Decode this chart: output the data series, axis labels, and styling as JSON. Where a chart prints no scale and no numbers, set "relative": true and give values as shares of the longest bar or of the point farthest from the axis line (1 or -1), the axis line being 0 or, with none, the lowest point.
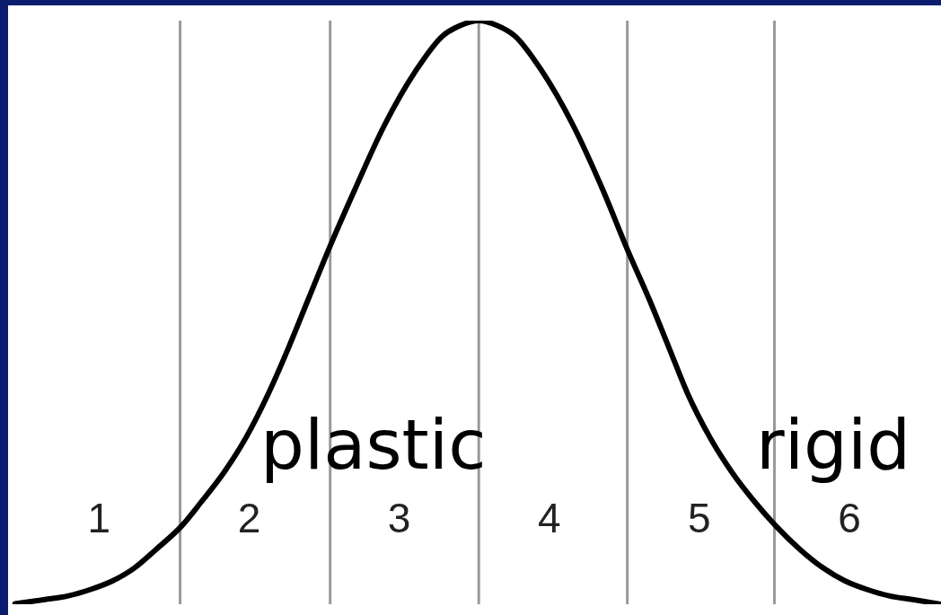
{
  "chart_data": {
    "type": "line",
    "relative": true,
    "color": "#000000",
    "x": [
      0.44,
      0.64,
      0.79,
      0.94,
      1.09,
      1.24,
      1.38,
      1.55,
      1.68,
      1.83,
      1.98,
      2.13,
      2.26,
      2.39,
      2.53,
      2.7,
      2.9,
      3.11,
      3.29,
      3.41,
      3.53,
      3.65,
      3.77,
      3.95,
      4.16,
      4.36,
      4.52,
      4.67,
      4.8,
      4.92,
      5.07,
      5.22,
      5.37,
      5.51,
      5.67,
      5.82,
      5.97,
      6.12,
      6.27,
      6.42,
      6.61
    ],
    "values": [
      0.001,
      0.008,
      0.014,
      0.025,
      0.04,
      0.063,
      0.094,
      0.134,
      0.175,
      0.225,
      0.286,
      0.362,
      0.438,
      0.52,
      0.608,
      0.708,
      0.82,
      0.914,
      0.974,
      0.992,
      1,
      0.992,
      0.974,
      0.914,
      0.82,
      0.708,
      0.608,
      0.52,
      0.438,
      0.362,
      0.286,
      0.225,
      0.175,
      0.134,
      0.094,
      0.063,
      0.04,
      0.025,
      0.014,
      0.008,
      0
    ],
    "xlim": [
      0.34,
      6.61
    ],
    "xticks": [
      1,
      2,
      3,
      4,
      5,
      6
    ],
    "ref_lines": [
      {
        "axis": "x",
        "value": 1.54,
        "color": "#999999"
      },
      {
        "axis": "x",
        "value": 2.54,
        "color": "#999999"
      },
      {
        "axis": "x",
        "value": 3.53,
        "color": "#999999"
      },
      {
        "axis": "x",
        "value": 4.52,
        "color": "#999999"
      },
      {
        "axis": "x",
        "value": 5.5,
        "color": "#999999"
      }
    ],
    "annotations": [
      "plastic",
      "rigid"
    ]
  }
}
